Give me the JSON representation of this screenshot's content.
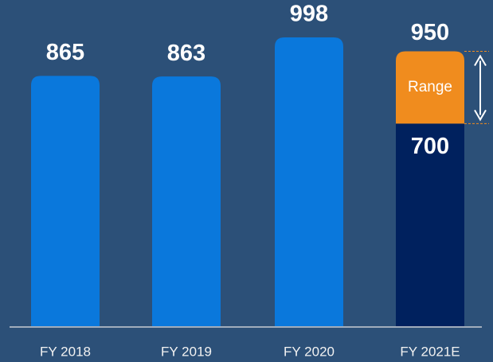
{
  "chart_data": {
    "type": "bar",
    "categories": [
      "FY 2018",
      "FY 2019",
      "FY 2020",
      "FY 2021E"
    ],
    "values": [
      865,
      863,
      998,
      700
    ],
    "color": "#0a78dc",
    "estimate_color": "#00215e",
    "range": {
      "label": "Range",
      "high": [
        null,
        null,
        null,
        950
      ],
      "color": "#f08c1e"
    }
  }
}
